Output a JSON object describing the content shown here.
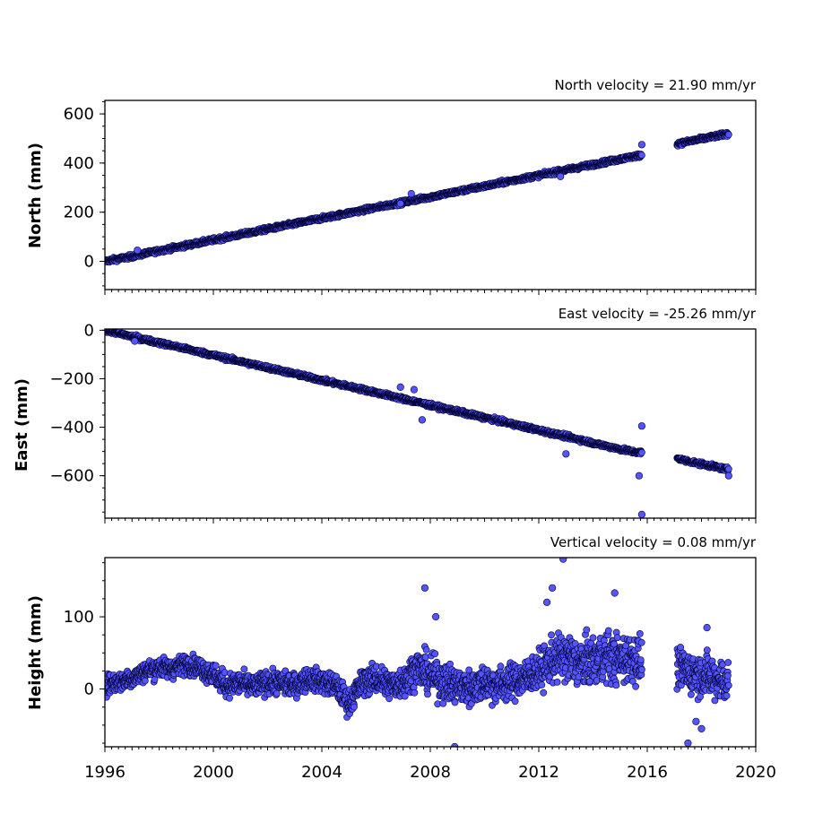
{
  "chart_data": [
    {
      "type": "scatter",
      "title": "North velocity = 21.90 mm/yr",
      "ylabel": "North (mm)",
      "xlim": [
        1996,
        2020
      ],
      "ylim": [
        -115,
        655
      ],
      "xticks": [
        "1996",
        "2000",
        "2004",
        "2008",
        "2012",
        "2016",
        "2020"
      ],
      "xtick_labels_visible": false,
      "yticks": [
        0,
        200,
        400,
        600
      ],
      "ytick_labels": [
        "0",
        "200",
        "400",
        "600"
      ],
      "grid": false,
      "marker_color": "#5555ff",
      "edge_color": "#000033",
      "series": [
        {
          "x": [
            1996.0,
            1996.5,
            1997.0,
            1997.5,
            1998.0,
            1998.5,
            1999.0,
            1999.5,
            2000.0,
            2000.5,
            2001.0,
            2001.5,
            2002.0,
            2002.5,
            2003.0,
            2003.5,
            2004.0,
            2004.5,
            2005.0,
            2005.5,
            2006.0,
            2006.5,
            2007.0,
            2007.5,
            2008.0,
            2008.5,
            2009.0,
            2009.5,
            2010.0,
            2010.5,
            2011.0,
            2011.5,
            2012.0,
            2012.5,
            2013.0,
            2013.5,
            2014.0,
            2014.5,
            2015.0,
            2015.5,
            2015.8,
            2017.1,
            2017.5,
            2018.0,
            2018.5,
            2019.0
          ],
          "y": [
            0,
            10,
            20,
            32,
            43,
            54,
            65,
            76,
            87,
            98,
            109,
            120,
            131,
            142,
            153,
            164,
            175,
            186,
            197,
            208,
            219,
            230,
            240,
            251,
            262,
            273,
            284,
            295,
            306,
            317,
            328,
            339,
            350,
            361,
            372,
            383,
            394,
            405,
            416,
            427,
            432,
            478,
            487,
            498,
            509,
            520
          ]
        }
      ],
      "outliers": {
        "x": [
          1997.2,
          2006.9,
          2007.3,
          2012.8,
          2015.8
        ],
        "y": [
          45,
          235,
          275,
          345,
          475
        ]
      }
    },
    {
      "type": "scatter",
      "title": "East velocity = -25.26 mm/yr",
      "ylabel": "East (mm)",
      "xlim": [
        1996,
        2020
      ],
      "ylim": [
        -775,
        5
      ],
      "xticks": [
        "1996",
        "2000",
        "2004",
        "2008",
        "2012",
        "2016",
        "2020"
      ],
      "xtick_labels_visible": false,
      "yticks": [
        0,
        -200,
        -400,
        -600
      ],
      "ytick_labels": [
        "0",
        "−200",
        "−400",
        "−600"
      ],
      "grid": false,
      "marker_color": "#5555ff",
      "edge_color": "#000033",
      "series": [
        {
          "x": [
            1996.0,
            1996.5,
            1997.0,
            1997.5,
            1998.0,
            1998.5,
            1999.0,
            1999.5,
            2000.0,
            2000.5,
            2001.0,
            2001.5,
            2002.0,
            2002.5,
            2003.0,
            2003.5,
            2004.0,
            2004.5,
            2005.0,
            2005.5,
            2006.0,
            2006.5,
            2007.0,
            2007.5,
            2008.0,
            2008.5,
            2009.0,
            2009.5,
            2010.0,
            2010.5,
            2011.0,
            2011.5,
            2012.0,
            2012.5,
            2013.0,
            2013.5,
            2014.0,
            2014.5,
            2015.0,
            2015.5,
            2015.8,
            2017.1,
            2017.5,
            2018.0,
            2018.5,
            2019.0
          ],
          "y": [
            0,
            -13,
            -26,
            -39,
            -52,
            -64,
            -77,
            -90,
            -103,
            -116,
            -129,
            -142,
            -154,
            -167,
            -180,
            -193,
            -206,
            -219,
            -232,
            -244,
            -257,
            -270,
            -283,
            -296,
            -309,
            -322,
            -335,
            -348,
            -360,
            -373,
            -386,
            -399,
            -412,
            -425,
            -438,
            -451,
            -465,
            -478,
            -490,
            -502,
            -505,
            -528,
            -540,
            -552,
            -563,
            -575
          ]
        }
      ],
      "outliers": {
        "x": [
          1997.1,
          2006.9,
          2007.4,
          2007.7,
          2013.0,
          2015.8,
          2015.7,
          2015.8,
          2019.0
        ],
        "y": [
          -45,
          -235,
          -245,
          -370,
          -510,
          -395,
          -600,
          -760,
          -600
        ]
      }
    },
    {
      "type": "scatter",
      "title": "Vertical velocity = 0.08 mm/yr",
      "ylabel": "Height (mm)",
      "xlim": [
        1996,
        2020
      ],
      "ylim": [
        -80,
        182
      ],
      "xticks": [
        "1996",
        "2000",
        "2004",
        "2008",
        "2012",
        "2016",
        "2020"
      ],
      "xtick_labels_visible": true,
      "yticks": [
        0,
        100
      ],
      "ytick_labels": [
        "0",
        "100"
      ],
      "grid": false,
      "marker_color": "#5555ff",
      "edge_color": "#000033",
      "series": [
        {
          "x": [
            1996.0,
            1996.5,
            1997.0,
            1997.5,
            1998.0,
            1998.5,
            1999.0,
            1999.5,
            2000.0,
            2000.5,
            2001.0,
            2001.5,
            2002.0,
            2002.5,
            2003.0,
            2003.5,
            2004.0,
            2004.5,
            2005.0,
            2005.5,
            2006.0,
            2006.5,
            2007.0,
            2007.5,
            2008.0,
            2008.5,
            2009.0,
            2009.5,
            2010.0,
            2010.5,
            2011.0,
            2011.5,
            2012.0,
            2012.5,
            2013.0,
            2013.5,
            2014.0,
            2014.5,
            2015.0,
            2015.5,
            2015.8,
            2017.1,
            2017.5,
            2018.0,
            2018.5,
            2019.0
          ],
          "y": [
            5,
            10,
            15,
            25,
            30,
            28,
            35,
            30,
            20,
            5,
            8,
            3,
            10,
            8,
            5,
            15,
            10,
            5,
            -20,
            10,
            15,
            5,
            10,
            30,
            20,
            10,
            5,
            0,
            10,
            5,
            10,
            15,
            25,
            40,
            45,
            35,
            40,
            45,
            40,
            45,
            35,
            30,
            25,
            20,
            15,
            10
          ],
          "spread": [
            12,
            12,
            12,
            12,
            12,
            12,
            12,
            12,
            14,
            14,
            14,
            14,
            14,
            14,
            14,
            14,
            14,
            14,
            16,
            16,
            18,
            18,
            20,
            22,
            24,
            24,
            22,
            22,
            22,
            22,
            22,
            22,
            24,
            26,
            30,
            30,
            30,
            30,
            30,
            30,
            30,
            26,
            26,
            26,
            26,
            26
          ]
        }
      ],
      "outliers": {
        "x": [
          2007.8,
          2008.2,
          2008.9,
          2012.3,
          2012.5,
          2012.9,
          2014.8,
          2017.5,
          2017.8,
          2018.0,
          2018.2
        ],
        "y": [
          140,
          100,
          -80,
          120,
          140,
          180,
          133,
          -75,
          -45,
          -55,
          85
        ]
      }
    }
  ]
}
